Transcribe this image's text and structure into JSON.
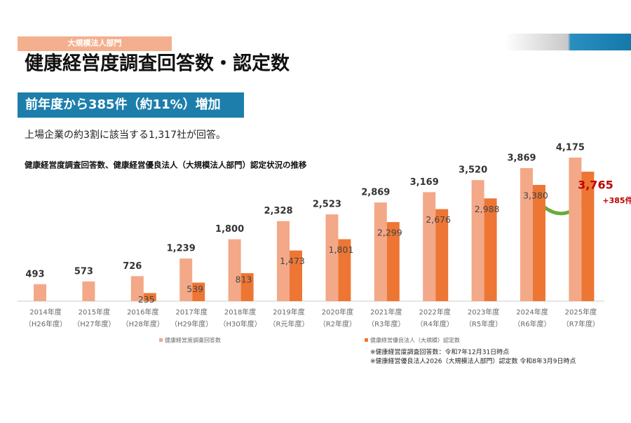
{
  "header": {
    "tag": "大規模法人部門",
    "title": "健康経営度調査回答数・認定数",
    "banner": "前年度から385件（約11%）増加",
    "lead": "上場企業の約3割に該当する1,317社が回答。"
  },
  "chart_data": {
    "type": "bar",
    "title": "健康経営度調査回答数、健康経営優良法人（大規模法人部門）認定状況の推移",
    "categories": [
      "2014年度",
      "2015年度",
      "2016年度",
      "2017年度",
      "2018年度",
      "2019年度",
      "2020年度",
      "2021年度",
      "2022年度",
      "2023年度",
      "2024年度",
      "2025年度"
    ],
    "era_labels": [
      "（H26年度）",
      "（H27年度）",
      "（H28年度）",
      "（H29年度）",
      "（H30年度）",
      "（R元年度）",
      "（R2年度）",
      "（R3年度）",
      "（R4年度）",
      "（R5年度）",
      "（R6年度）",
      "（R7年度）"
    ],
    "series": [
      {
        "name": "健康経営度調査回答数",
        "color": "#f3a888",
        "values": [
          493,
          573,
          726,
          1239,
          1800,
          2328,
          2523,
          2869,
          3169,
          3520,
          3869,
          4175
        ],
        "value_labels": [
          "493",
          "573",
          "726",
          "1,239",
          "1,800",
          "2,328",
          "2,523",
          "2,869",
          "3,169",
          "3,520",
          "3,869",
          "4,175"
        ]
      },
      {
        "name": "健康経営優良法人（大規模）認定数",
        "color": "#ed7634",
        "values": [
          null,
          null,
          235,
          539,
          813,
          1473,
          1801,
          2299,
          2676,
          2988,
          3380,
          3765
        ],
        "value_labels": [
          null,
          null,
          "235",
          "539",
          "813",
          "1,473",
          "1,801",
          "2,299",
          "2,676",
          "2,988",
          "3,380",
          "3,765"
        ]
      }
    ],
    "highlight_color": "#c00000",
    "annotation": "+385件",
    "notes": [
      "※健康経営度調査回答数：令和7年12月31日時点",
      "※健康経営優良法人2026（大規模法人部門）認定数  令和8年3月9日時点"
    ]
  }
}
